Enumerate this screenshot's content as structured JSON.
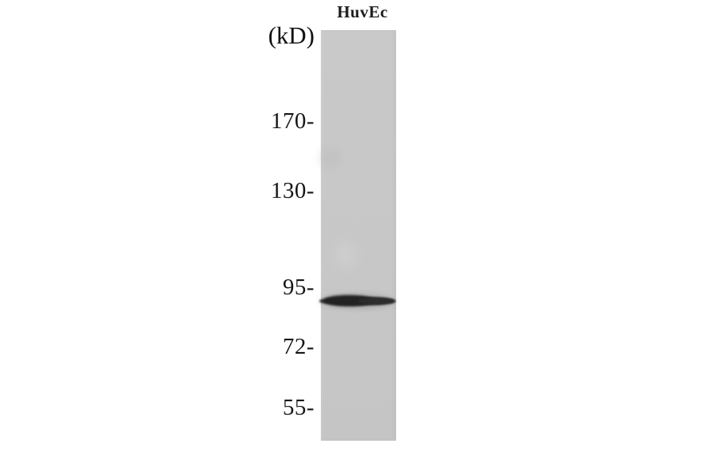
{
  "figure": {
    "kind": "western-blot",
    "lane_label": "HuvEc",
    "unit_label": "(kD)",
    "markers": [
      {
        "label": "170-",
        "value": 170
      },
      {
        "label": "130-",
        "value": 130
      },
      {
        "label": "95-",
        "value": 95
      },
      {
        "label": "72-",
        "value": 72
      },
      {
        "label": "55-",
        "value": 55
      }
    ],
    "bands": [
      {
        "lane": "HuvEc",
        "position": "just below 95 kD marker",
        "intensity": "strong"
      }
    ],
    "colors": {
      "background": "#ffffff",
      "lane_gray": "#c8c8c8",
      "band_dark": "#262626",
      "text": "#151515"
    }
  }
}
